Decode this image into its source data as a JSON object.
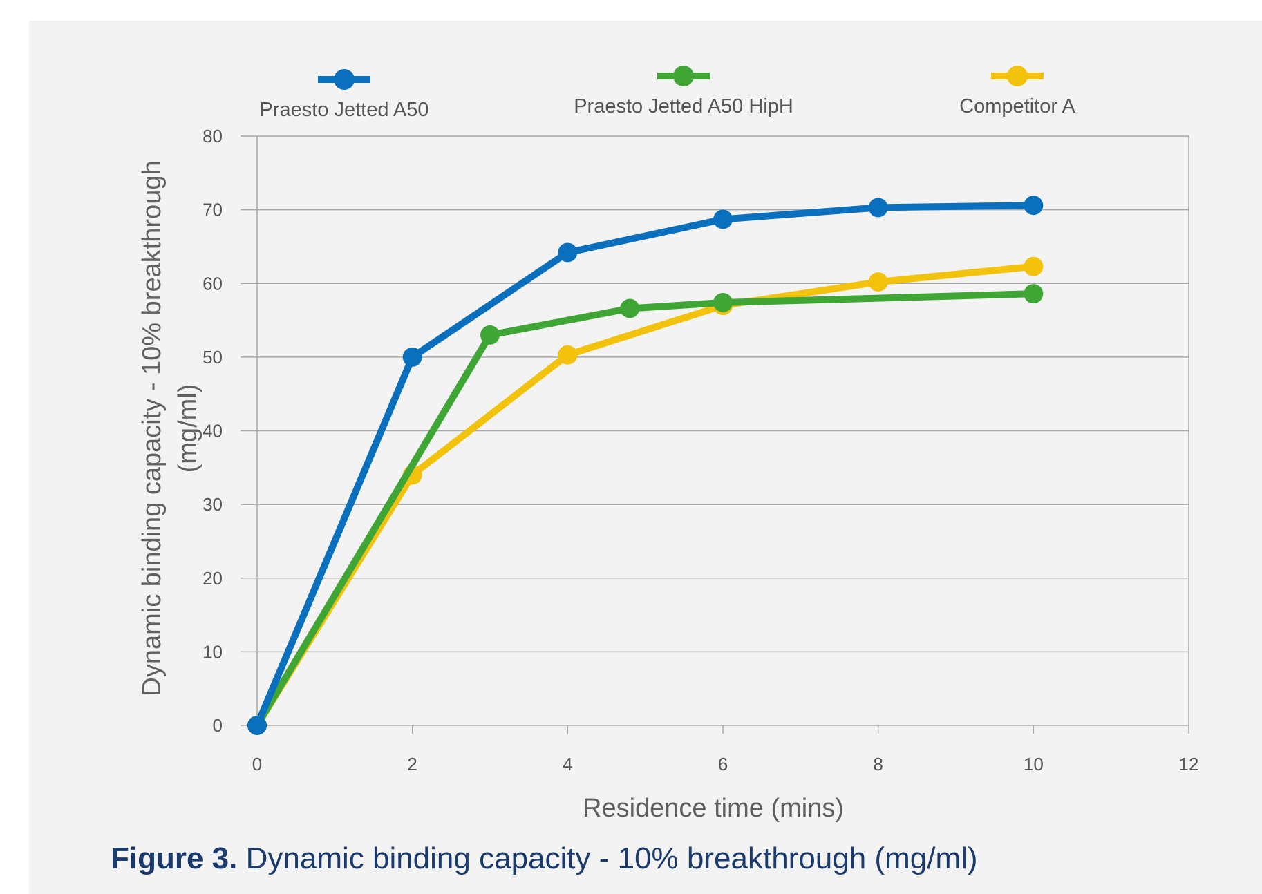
{
  "chart_data": {
    "type": "line",
    "title": "",
    "xlabel": "Residence time (mins)",
    "ylabel": "Dynamic binding capacity -  10% breakthrough (mg/ml)",
    "ylabel_lines": [
      "Dynamic binding capacity -  10% breakthrough",
      "(mg/ml)"
    ],
    "xlim": [
      0,
      12
    ],
    "ylim": [
      0,
      80
    ],
    "xticks": [
      0,
      2,
      4,
      6,
      8,
      10,
      12
    ],
    "yticks": [
      0,
      10,
      20,
      30,
      40,
      50,
      60,
      70,
      80
    ],
    "grid": true,
    "legend_position": "top",
    "series": [
      {
        "name": "Praesto Jetted A50",
        "color": "#0a6fbd",
        "points": [
          [
            0,
            0
          ],
          [
            2,
            50
          ],
          [
            4,
            64.2
          ],
          [
            6,
            68.7
          ],
          [
            8,
            70.3
          ],
          [
            10,
            70.6
          ]
        ]
      },
      {
        "name": "Praesto Jetted A50 HipH",
        "color": "#3fa535",
        "points": [
          [
            0,
            0
          ],
          [
            3,
            53
          ],
          [
            4.8,
            56.6
          ],
          [
            6,
            57.4
          ],
          [
            10,
            58.6
          ]
        ]
      },
      {
        "name": "Competitor A",
        "color": "#f2c20c",
        "points": [
          [
            0,
            0
          ],
          [
            2,
            34
          ],
          [
            4,
            50.3
          ],
          [
            6,
            57
          ],
          [
            8,
            60.2
          ],
          [
            10,
            62.3
          ]
        ]
      }
    ]
  },
  "caption": {
    "label": "Figure 3.",
    "text": " Dynamic binding capacity - 10% breakthrough (mg/ml)"
  }
}
